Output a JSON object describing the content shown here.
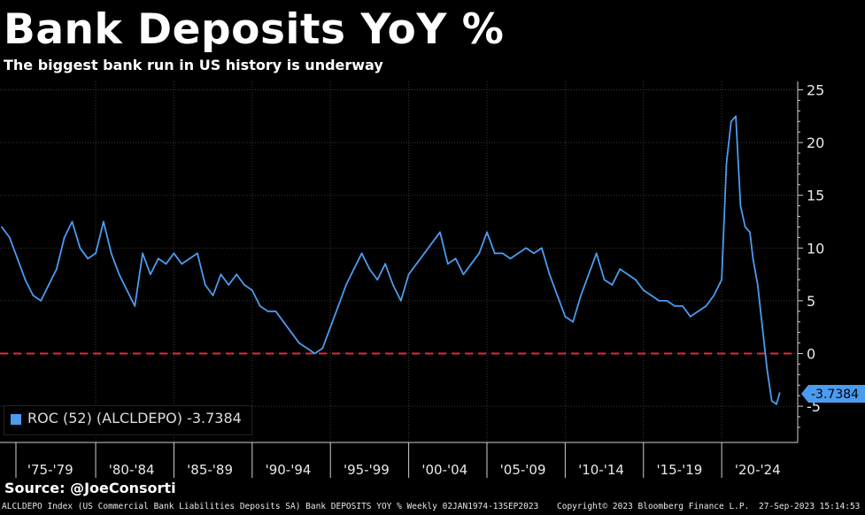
{
  "header": {
    "title": "Bank Deposits YoY %",
    "subtitle": "The biggest bank run in US history is underway"
  },
  "legend": {
    "label": "ROC (52) (ALCLDEPO) -3.7384",
    "color": "#4b9cf0"
  },
  "last_value_tag": "-3.7384",
  "footer": {
    "source": "Source: @JoeConsorti",
    "description": "ALCLDEPO Index (US Commercial Bank Liabilities Deposits SA) Bank DEPOSITS YOY %  Weekly 02JAN1974-13SEP2023",
    "copyright": "Copyright© 2023 Bloomberg Finance L.P.",
    "timestamp": "27-Sep-2023 15:14:53"
  },
  "colors": {
    "background": "#000000",
    "series": "#4b9cf0",
    "zero_line": "#e8283a",
    "grid": "#3a3a3a"
  },
  "chart_data": {
    "type": "line",
    "title": "Bank Deposits YoY %",
    "subtitle": "The biggest bank run in US history is underway",
    "x_tick_labels": [
      "'75-'79",
      "'80-'84",
      "'85-'89",
      "'90-'94",
      "'95-'99",
      "'00-'04",
      "'05-'09",
      "'10-'14",
      "'15-'19",
      "'20-'24"
    ],
    "y_ticks": [
      25,
      20,
      15,
      10,
      5,
      0,
      -5
    ],
    "y_axis_side": "right",
    "ylim": [
      -8,
      26
    ],
    "xlim": [
      1974.0,
      2025.0
    ],
    "grid": true,
    "reference_line": {
      "y": 0,
      "style": "dashed",
      "color": "#e8283a"
    },
    "series": [
      {
        "name": "ROC (52) (ALCLDEPO)",
        "color": "#4b9cf0",
        "last_value": -3.7384,
        "x": [
          1974.0,
          1974.5,
          1975.0,
          1975.5,
          1976.0,
          1976.5,
          1977.0,
          1977.5,
          1978.0,
          1978.5,
          1979.0,
          1979.5,
          1980.0,
          1980.5,
          1981.0,
          1981.5,
          1982.0,
          1982.5,
          1983.0,
          1983.5,
          1984.0,
          1984.5,
          1985.0,
          1985.5,
          1986.0,
          1986.5,
          1987.0,
          1987.5,
          1988.0,
          1988.5,
          1989.0,
          1989.5,
          1990.0,
          1990.5,
          1991.0,
          1991.5,
          1992.0,
          1992.5,
          1993.0,
          1993.5,
          1994.0,
          1994.5,
          1995.0,
          1995.5,
          1996.0,
          1996.5,
          1997.0,
          1997.5,
          1998.0,
          1998.5,
          1999.0,
          1999.5,
          2000.0,
          2000.5,
          2001.0,
          2001.5,
          2002.0,
          2002.5,
          2003.0,
          2003.5,
          2004.0,
          2004.5,
          2005.0,
          2005.5,
          2006.0,
          2006.5,
          2007.0,
          2007.5,
          2008.0,
          2008.5,
          2009.0,
          2009.5,
          2010.0,
          2010.5,
          2011.0,
          2011.5,
          2012.0,
          2012.5,
          2013.0,
          2013.5,
          2014.0,
          2014.5,
          2015.0,
          2015.5,
          2016.0,
          2016.5,
          2017.0,
          2017.5,
          2018.0,
          2018.5,
          2019.0,
          2019.5,
          2020.0,
          2020.3,
          2020.6,
          2020.9,
          2021.2,
          2021.5,
          2021.8,
          2022.0,
          2022.3,
          2022.6,
          2022.9,
          2023.2,
          2023.5,
          2023.7
        ],
        "y": [
          12.0,
          11.0,
          9.0,
          7.0,
          5.5,
          5.0,
          6.5,
          8.0,
          11.0,
          12.5,
          10.0,
          9.0,
          9.5,
          12.5,
          9.5,
          7.5,
          6.0,
          4.5,
          9.5,
          7.5,
          9.0,
          8.5,
          9.5,
          8.5,
          9.0,
          9.5,
          6.5,
          5.5,
          7.5,
          6.5,
          7.5,
          6.5,
          6.0,
          4.5,
          4.0,
          4.0,
          3.0,
          2.0,
          1.0,
          0.5,
          0.0,
          0.5,
          2.5,
          4.5,
          6.5,
          8.0,
          9.5,
          8.0,
          7.0,
          8.5,
          6.5,
          5.0,
          7.5,
          8.5,
          9.5,
          10.5,
          11.5,
          8.5,
          9.0,
          7.5,
          8.5,
          9.5,
          11.5,
          9.5,
          9.5,
          9.0,
          9.5,
          10.0,
          9.5,
          10.0,
          7.5,
          5.5,
          3.5,
          3.0,
          5.5,
          7.5,
          9.5,
          7.0,
          6.5,
          8.0,
          7.5,
          7.0,
          6.0,
          5.5,
          5.0,
          5.0,
          4.5,
          4.5,
          3.5,
          4.0,
          4.5,
          5.5,
          7.0,
          18.0,
          22.0,
          22.5,
          14.0,
          12.0,
          11.5,
          9.0,
          6.5,
          2.5,
          -1.5,
          -4.5,
          -4.8,
          -3.7384
        ]
      }
    ]
  }
}
